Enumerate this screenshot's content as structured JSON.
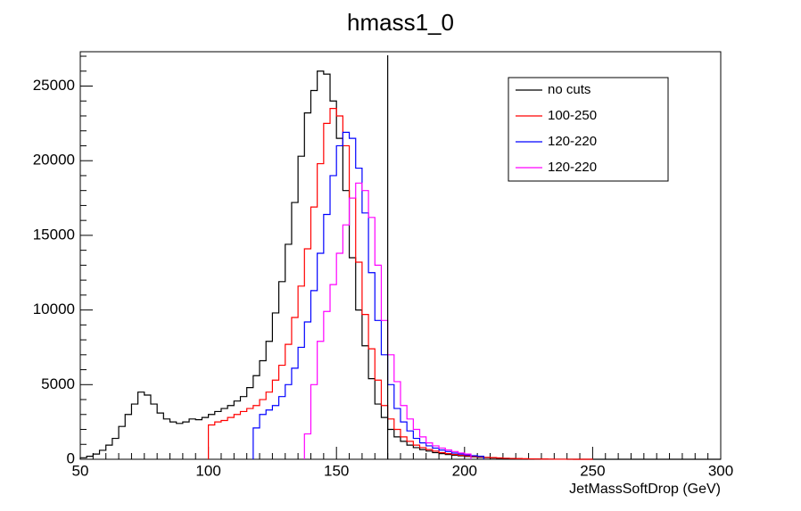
{
  "chart_data": {
    "type": "line",
    "title": "hmass1_0",
    "xlabel": "JetMassSoftDrop (GeV)",
    "ylabel": "",
    "xlim": [
      50,
      300
    ],
    "ylim": [
      0,
      27300
    ],
    "xticks": [
      50,
      100,
      150,
      200,
      250,
      300
    ],
    "yticks": [
      0,
      5000,
      10000,
      15000,
      20000,
      25000
    ],
    "bin_width": 2.5,
    "grid": false,
    "legend_position": "top-right",
    "vertical_line_x": 170,
    "series": [
      {
        "name": "no cuts",
        "color": "#000000",
        "start": 50,
        "values": [
          100,
          200,
          350,
          600,
          950,
          1400,
          2200,
          3000,
          3700,
          4500,
          4300,
          3700,
          3100,
          2700,
          2500,
          2400,
          2500,
          2700,
          2650,
          2800,
          3000,
          3200,
          3400,
          3600,
          3900,
          4200,
          4800,
          5600,
          6600,
          7900,
          9800,
          11900,
          14400,
          17200,
          20300,
          23200,
          24700,
          26000,
          25800,
          24000,
          21500,
          18000,
          13500,
          10000,
          7600,
          5400,
          3700,
          2800,
          2000,
          1500,
          1200,
          950,
          780,
          650,
          550,
          450,
          380,
          320,
          270,
          230,
          190,
          160,
          130,
          110,
          90,
          70,
          55,
          45,
          35,
          25,
          20,
          15,
          10,
          5,
          5,
          3,
          2,
          2,
          1,
          1,
          1,
          0,
          0,
          0,
          0,
          0,
          0,
          0,
          0,
          0,
          0,
          0,
          0,
          0,
          0,
          0,
          0,
          0,
          0,
          0
        ]
      },
      {
        "name": "100-250",
        "color": "#ff0000",
        "start": 100,
        "values": [
          2300,
          2500,
          2600,
          2800,
          3000,
          3200,
          3400,
          3600,
          4000,
          4500,
          5300,
          6300,
          7700,
          9500,
          11600,
          14100,
          16900,
          19800,
          22500,
          23500,
          23000,
          21000,
          17500,
          13200,
          9700,
          7400,
          5300,
          3600,
          2700,
          2000,
          1500,
          1200,
          950,
          780,
          650,
          550,
          450,
          380,
          320,
          270,
          230,
          190,
          160,
          130,
          110,
          90,
          70,
          55,
          45,
          35,
          25,
          20,
          15,
          10,
          5,
          5,
          3,
          2,
          2,
          1
        ]
      },
      {
        "name": "120-220",
        "color": "#0000ff",
        "start": 117.5,
        "values": [
          2100,
          3000,
          3300,
          3600,
          4200,
          5000,
          6100,
          7500,
          9200,
          11300,
          13800,
          16400,
          19000,
          21000,
          21900,
          21500,
          19500,
          16500,
          12500,
          9300,
          7000,
          5000,
          3400,
          2500,
          1900,
          1400,
          1100,
          900,
          750,
          620,
          520,
          420,
          350,
          290,
          240,
          200
        ]
      },
      {
        "name": "120-220",
        "color": "#ff00ff",
        "start": 137.5,
        "values": [
          1700,
          5000,
          7900,
          9900,
          11700,
          13800,
          15700,
          17500,
          18500,
          18000,
          16200,
          13000,
          9300,
          7000,
          5200,
          3600,
          2700,
          2000,
          1500,
          1100,
          900,
          750,
          620,
          520,
          420,
          350
        ]
      }
    ]
  }
}
